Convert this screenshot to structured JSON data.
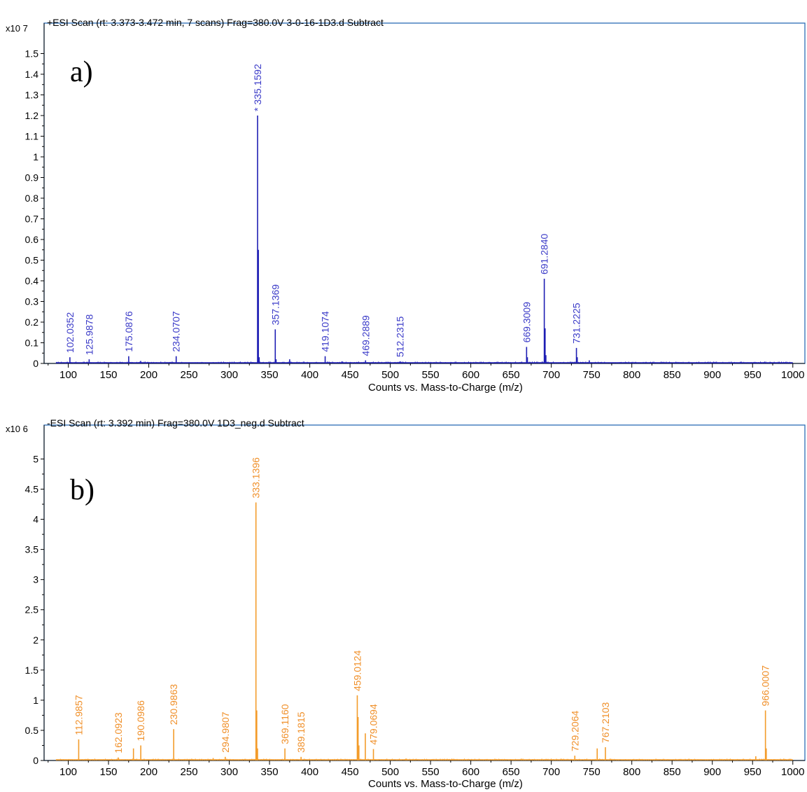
{
  "chart_data": [
    {
      "type": "line",
      "panel_label": "a)",
      "title": "+ESI Scan (rt: 3.373-3.472 min, 7 scans) Frag=380.0V 3-0-16-1D3.d  Subtract",
      "ylabel_multiplier": "x10 7",
      "xlabel": "Counts vs. Mass-to-Charge (m/z)",
      "xlim": [
        70,
        1015
      ],
      "ylim": [
        0,
        1.6
      ],
      "x_ticks": [
        100,
        150,
        200,
        250,
        300,
        350,
        400,
        450,
        500,
        550,
        600,
        650,
        700,
        750,
        800,
        850,
        900,
        950,
        1000
      ],
      "y_ticks": [
        0,
        0.1,
        0.2,
        0.3,
        0.4,
        0.5,
        0.6,
        0.7,
        0.8,
        0.9,
        1,
        1.1,
        1.2,
        1.3,
        1.4,
        1.5
      ],
      "color": "#1f1fb4",
      "label_color": "#3b3bc8",
      "peaks": [
        {
          "mz": 102.0352,
          "intensity": 0.03,
          "label": "102.0352"
        },
        {
          "mz": 125.9878,
          "intensity": 0.02,
          "label": "125.9878"
        },
        {
          "mz": 175.0876,
          "intensity": 0.035,
          "label": "175.0876"
        },
        {
          "mz": 234.0707,
          "intensity": 0.035,
          "label": "234.0707"
        },
        {
          "mz": 335.1592,
          "intensity": 1.2,
          "label": "* 335.1592"
        },
        {
          "mz": 336.16,
          "intensity": 0.55,
          "label": ""
        },
        {
          "mz": 337.16,
          "intensity": 0.03,
          "label": ""
        },
        {
          "mz": 357.1369,
          "intensity": 0.165,
          "label": "357.1369"
        },
        {
          "mz": 358.14,
          "intensity": 0.02,
          "label": ""
        },
        {
          "mz": 419.1074,
          "intensity": 0.035,
          "label": "419.1074"
        },
        {
          "mz": 469.2889,
          "intensity": 0.015,
          "label": "469.2889"
        },
        {
          "mz": 512.2315,
          "intensity": 0.01,
          "label": "512.2315"
        },
        {
          "mz": 669.3009,
          "intensity": 0.08,
          "label": "669.3009"
        },
        {
          "mz": 670.3,
          "intensity": 0.03,
          "label": ""
        },
        {
          "mz": 691.284,
          "intensity": 0.41,
          "label": "691.2840"
        },
        {
          "mz": 692.29,
          "intensity": 0.17,
          "label": ""
        },
        {
          "mz": 693.29,
          "intensity": 0.04,
          "label": ""
        },
        {
          "mz": 731.2225,
          "intensity": 0.075,
          "label": "731.2225"
        },
        {
          "mz": 732.23,
          "intensity": 0.03,
          "label": ""
        },
        {
          "mz": 747.2,
          "intensity": 0.015,
          "label": ""
        },
        {
          "mz": 375.0,
          "intensity": 0.02,
          "label": ""
        },
        {
          "mz": 190.0,
          "intensity": 0.012,
          "label": ""
        },
        {
          "mz": 440.0,
          "intensity": 0.01,
          "label": ""
        },
        {
          "mz": 935.0,
          "intensity": 0.008,
          "label": ""
        }
      ]
    },
    {
      "type": "line",
      "panel_label": "b)",
      "title": "-ESI Scan (rt: 3.392 min) Frag=380.0V 1D3_neg.d  Subtract",
      "ylabel_multiplier": "x10 6",
      "xlabel": "Counts vs. Mass-to-Charge (m/z)",
      "xlim": [
        70,
        1015
      ],
      "ylim": [
        0,
        5.4
      ],
      "x_ticks": [
        100,
        150,
        200,
        250,
        300,
        350,
        400,
        450,
        500,
        550,
        600,
        650,
        700,
        750,
        800,
        850,
        900,
        950,
        1000
      ],
      "y_ticks": [
        0,
        0.5,
        1,
        1.5,
        2,
        2.5,
        3,
        3.5,
        4,
        4.5,
        5
      ],
      "y_tick_labels": [
        "0",
        "0.5",
        "1",
        "1.5",
        "2",
        "2.5",
        "3",
        "3.5",
        "4",
        "4.5",
        "5"
      ],
      "color": "#f39c2b",
      "label_color": "#f0902a",
      "peaks": [
        {
          "mz": 112.9857,
          "intensity": 0.35,
          "label": "112.9857"
        },
        {
          "mz": 162.0923,
          "intensity": 0.05,
          "label": "162.0923"
        },
        {
          "mz": 181.0,
          "intensity": 0.2,
          "label": ""
        },
        {
          "mz": 190.0986,
          "intensity": 0.25,
          "label": "190.0986"
        },
        {
          "mz": 230.9863,
          "intensity": 0.52,
          "label": "230.9863"
        },
        {
          "mz": 294.9807,
          "intensity": 0.06,
          "label": "294.9807"
        },
        {
          "mz": 333.1396,
          "intensity": 4.28,
          "label": "333.1396"
        },
        {
          "mz": 334.14,
          "intensity": 0.83,
          "label": ""
        },
        {
          "mz": 335.14,
          "intensity": 0.2,
          "label": ""
        },
        {
          "mz": 369.116,
          "intensity": 0.2,
          "label": "369.1160"
        },
        {
          "mz": 389.1815,
          "intensity": 0.06,
          "label": "389.1815"
        },
        {
          "mz": 459.0124,
          "intensity": 1.08,
          "label": "459.0124"
        },
        {
          "mz": 460.02,
          "intensity": 0.72,
          "label": ""
        },
        {
          "mz": 461.02,
          "intensity": 0.25,
          "label": ""
        },
        {
          "mz": 469.0,
          "intensity": 0.45,
          "label": ""
        },
        {
          "mz": 479.0694,
          "intensity": 0.19,
          "label": "479.0694"
        },
        {
          "mz": 729.2064,
          "intensity": 0.08,
          "label": "729.2064"
        },
        {
          "mz": 757.0,
          "intensity": 0.2,
          "label": ""
        },
        {
          "mz": 767.2103,
          "intensity": 0.22,
          "label": "767.2103"
        },
        {
          "mz": 954.0,
          "intensity": 0.07,
          "label": ""
        },
        {
          "mz": 966.0007,
          "intensity": 0.83,
          "label": "966.0007"
        },
        {
          "mz": 967.0,
          "intensity": 0.2,
          "label": ""
        },
        {
          "mz": 280.0,
          "intensity": 0.04,
          "label": ""
        },
        {
          "mz": 520.0,
          "intensity": 0.03,
          "label": ""
        }
      ]
    }
  ]
}
